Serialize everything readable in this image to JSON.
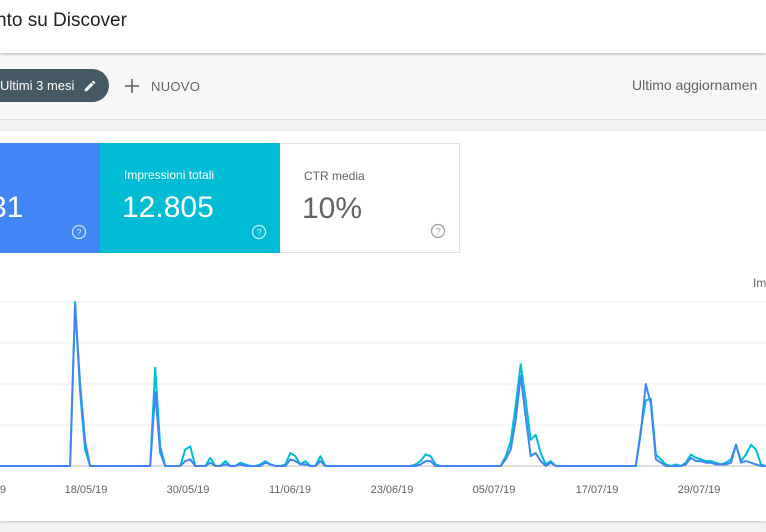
{
  "header": {
    "title": "nto su Discover"
  },
  "toolbar": {
    "date_filter_label": "Ultimi 3 mesi",
    "new_label": "NUOVO",
    "last_update_text": "Ultimo aggiornamen"
  },
  "metrics": {
    "clicks": {
      "value": "31"
    },
    "impressions": {
      "label": "Impressioni totali",
      "value": "12.805"
    },
    "ctr": {
      "label": "CTR media",
      "value": "10%"
    }
  },
  "legend": {
    "impressions_label": "Im"
  },
  "colors": {
    "clicks": "#4285f4",
    "impressions": "#00bcd4",
    "chip_bg": "#455a64"
  },
  "icons": {
    "edit": "pencil-icon",
    "add": "plus-icon",
    "help": "help-circle-icon"
  },
  "chart_data": {
    "type": "line",
    "x_tick_labels": [
      "9",
      "18/05/19",
      "30/05/19",
      "11/06/19",
      "23/06/19",
      "05/07/19",
      "17/07/19",
      "29/07/19"
    ],
    "ylim": [
      0,
      100
    ],
    "grid": true,
    "series": [
      {
        "color": "#00bcd4",
        "values": [
          0,
          0,
          0,
          0,
          0,
          0,
          0,
          0,
          0,
          0,
          0,
          0,
          0,
          0,
          0,
          100,
          45,
          10,
          0,
          0,
          0,
          0,
          0,
          0,
          0,
          0,
          0,
          0,
          0,
          0,
          0,
          60,
          12,
          0,
          0,
          0,
          0,
          10,
          12,
          0,
          0,
          0,
          5,
          0,
          0,
          3,
          0,
          0,
          2,
          1,
          0,
          0,
          1,
          3,
          1,
          0,
          0,
          1,
          8,
          6,
          1,
          3,
          0,
          0,
          6,
          0,
          0,
          0,
          0,
          0,
          0,
          0,
          0,
          0,
          0,
          0,
          0,
          0,
          0,
          0,
          0,
          0,
          0,
          1,
          3,
          7,
          6,
          1,
          0,
          0,
          0,
          0,
          0,
          0,
          0,
          0,
          0,
          0,
          0,
          0,
          0,
          6,
          15,
          37,
          62,
          40,
          16,
          19,
          8,
          1,
          3,
          0,
          0,
          0,
          0,
          0,
          0,
          0,
          0,
          0,
          0,
          0,
          0,
          0,
          0,
          0,
          0,
          0,
          22,
          40,
          41,
          7,
          4,
          1,
          0,
          1,
          0,
          2,
          7,
          5,
          4,
          3,
          3,
          2,
          1,
          2,
          4,
          13,
          3,
          7,
          13,
          10,
          1,
          0
        ]
      },
      {
        "color": "#4285f4",
        "values": [
          0,
          0,
          0,
          0,
          0,
          0,
          0,
          0,
          0,
          0,
          0,
          0,
          0,
          0,
          0,
          98,
          50,
          15,
          0,
          0,
          0,
          0,
          0,
          0,
          0,
          0,
          0,
          0,
          0,
          0,
          0,
          45,
          8,
          0,
          0,
          0,
          0,
          3,
          4,
          0,
          0,
          0,
          2,
          0,
          0,
          1,
          0,
          0,
          1,
          0,
          0,
          0,
          0,
          2,
          1,
          0,
          0,
          0,
          4,
          3,
          1,
          1,
          0,
          0,
          3,
          0,
          0,
          0,
          0,
          0,
          0,
          0,
          0,
          0,
          0,
          0,
          0,
          0,
          0,
          0,
          0,
          0,
          0,
          0,
          1,
          3,
          3,
          0,
          0,
          0,
          0,
          0,
          0,
          0,
          0,
          0,
          0,
          0,
          0,
          0,
          0,
          4,
          10,
          28,
          55,
          30,
          6,
          8,
          3,
          0,
          2,
          0,
          0,
          0,
          0,
          0,
          0,
          0,
          0,
          0,
          0,
          0,
          0,
          0,
          0,
          0,
          0,
          0,
          20,
          50,
          38,
          4,
          2,
          0,
          0,
          0,
          0,
          1,
          5,
          3,
          3,
          2,
          2,
          1,
          1,
          1,
          2,
          13,
          2,
          3,
          2,
          1,
          0,
          0
        ]
      }
    ]
  }
}
